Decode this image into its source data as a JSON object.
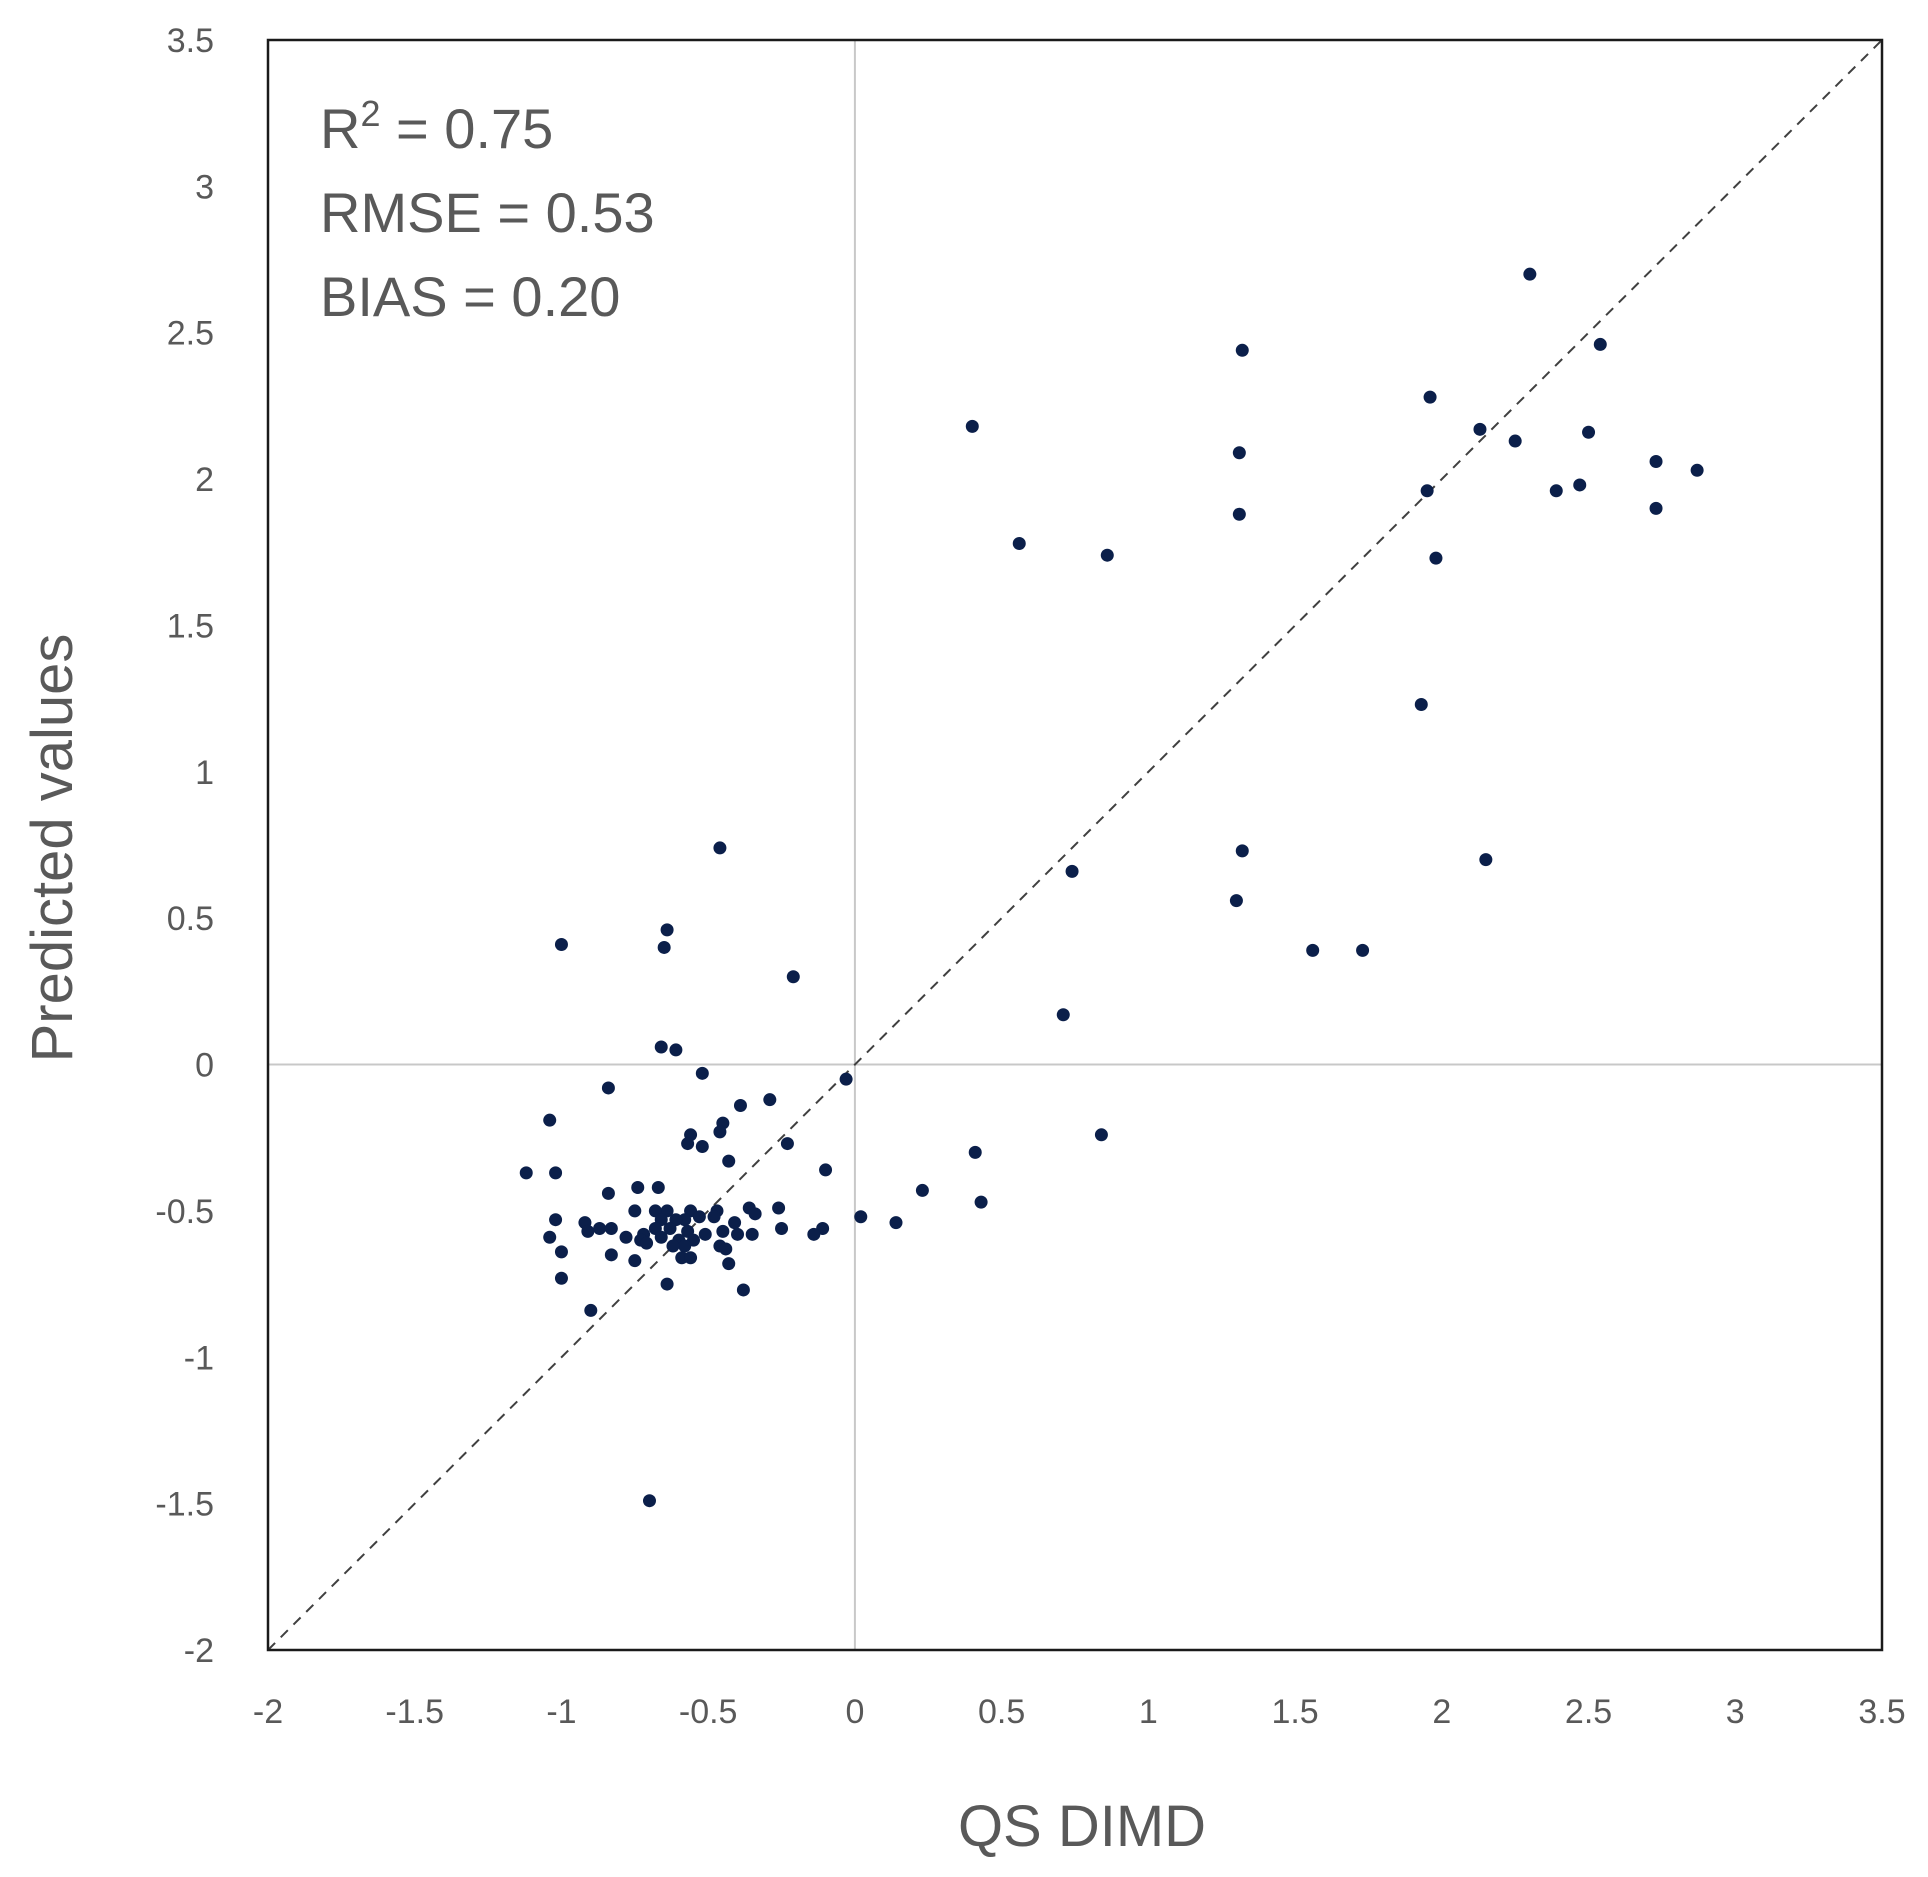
{
  "chart_data": {
    "type": "scatter",
    "title": "",
    "xlabel": "QS DIMD",
    "ylabel": "Predicted values",
    "xlim": [
      -2,
      3.5
    ],
    "ylim": [
      -2,
      3.5
    ],
    "x_ticks": [
      "-2",
      "-1.5",
      "-1",
      "-0.5",
      "0",
      "0.5",
      "1",
      "1.5",
      "2",
      "2.5",
      "3",
      "3.5"
    ],
    "y_ticks": [
      "-2",
      "-1.5",
      "-1",
      "-0.5",
      "0",
      "0.5",
      "1",
      "1.5",
      "2",
      "2.5",
      "3",
      "3.5"
    ],
    "grid": false,
    "zero_lines": true,
    "reference_line": {
      "type": "y=x",
      "style": "dashed"
    },
    "annotations": {
      "r2_label": "R",
      "r2_sup": "2",
      "r2_value": " = 0.75",
      "rmse": "RMSE = 0.53",
      "bias": "BIAS = 0.20"
    },
    "marker_color": "#0b1f4a",
    "series": [
      {
        "name": "points",
        "points": [
          [
            2.3,
            2.7
          ],
          [
            1.32,
            2.44
          ],
          [
            2.54,
            2.46
          ],
          [
            0.4,
            2.18
          ],
          [
            1.96,
            2.28
          ],
          [
            2.13,
            2.17
          ],
          [
            2.25,
            2.13
          ],
          [
            2.5,
            2.16
          ],
          [
            1.31,
            2.09
          ],
          [
            2.73,
            2.06
          ],
          [
            2.87,
            2.03
          ],
          [
            1.95,
            1.96
          ],
          [
            2.39,
            1.96
          ],
          [
            2.47,
            1.98
          ],
          [
            2.73,
            1.9
          ],
          [
            1.31,
            1.88
          ],
          [
            0.56,
            1.78
          ],
          [
            0.86,
            1.74
          ],
          [
            1.98,
            1.73
          ],
          [
            1.93,
            1.23
          ],
          [
            1.32,
            0.73
          ],
          [
            2.15,
            0.7
          ],
          [
            0.74,
            0.66
          ],
          [
            1.3,
            0.56
          ],
          [
            1.56,
            0.39
          ],
          [
            1.73,
            0.39
          ],
          [
            0.71,
            0.17
          ],
          [
            -0.46,
            0.74
          ],
          [
            -0.64,
            0.46
          ],
          [
            -0.65,
            0.4
          ],
          [
            -1.0,
            0.41
          ],
          [
            -0.21,
            0.3
          ],
          [
            -0.66,
            0.06
          ],
          [
            -0.61,
            0.05
          ],
          [
            -0.52,
            -0.03
          ],
          [
            -0.03,
            -0.05
          ],
          [
            -0.84,
            -0.08
          ],
          [
            -0.29,
            -0.12
          ],
          [
            -0.39,
            -0.14
          ],
          [
            -1.04,
            -0.19
          ],
          [
            -0.45,
            -0.2
          ],
          [
            -0.46,
            -0.23
          ],
          [
            -0.56,
            -0.24
          ],
          [
            -0.57,
            -0.27
          ],
          [
            -0.52,
            -0.28
          ],
          [
            -0.23,
            -0.27
          ],
          [
            0.84,
            -0.24
          ],
          [
            -0.43,
            -0.33
          ],
          [
            0.41,
            -0.3
          ],
          [
            -0.1,
            -0.36
          ],
          [
            -1.12,
            -0.37
          ],
          [
            -1.02,
            -0.37
          ],
          [
            -0.74,
            -0.42
          ],
          [
            -0.67,
            -0.42
          ],
          [
            -0.84,
            -0.44
          ],
          [
            0.23,
            -0.43
          ],
          [
            0.43,
            -0.47
          ],
          [
            -0.26,
            -0.49
          ],
          [
            -0.36,
            -0.49
          ],
          [
            -0.47,
            -0.5
          ],
          [
            -0.56,
            -0.5
          ],
          [
            -0.64,
            -0.5
          ],
          [
            -0.68,
            -0.5
          ],
          [
            -0.75,
            -0.5
          ],
          [
            -0.34,
            -0.51
          ],
          [
            -0.48,
            -0.52
          ],
          [
            -0.53,
            -0.52
          ],
          [
            -0.58,
            -0.53
          ],
          [
            -0.61,
            -0.53
          ],
          [
            -0.66,
            -0.53
          ],
          [
            -0.41,
            -0.54
          ],
          [
            -1.02,
            -0.53
          ],
          [
            -0.92,
            -0.54
          ],
          [
            0.02,
            -0.52
          ],
          [
            0.14,
            -0.54
          ],
          [
            -0.87,
            -0.56
          ],
          [
            -0.83,
            -0.56
          ],
          [
            -0.72,
            -0.58
          ],
          [
            -0.68,
            -0.56
          ],
          [
            -0.63,
            -0.56
          ],
          [
            -0.57,
            -0.57
          ],
          [
            -0.51,
            -0.58
          ],
          [
            -0.45,
            -0.57
          ],
          [
            -0.4,
            -0.58
          ],
          [
            -0.35,
            -0.58
          ],
          [
            -0.25,
            -0.56
          ],
          [
            -0.11,
            -0.56
          ],
          [
            -0.14,
            -0.58
          ],
          [
            -1.04,
            -0.59
          ],
          [
            -0.91,
            -0.57
          ],
          [
            -0.78,
            -0.59
          ],
          [
            -0.73,
            -0.6
          ],
          [
            -0.66,
            -0.59
          ],
          [
            -0.6,
            -0.6
          ],
          [
            -0.55,
            -0.6
          ],
          [
            -0.46,
            -0.62
          ],
          [
            -0.44,
            -0.63
          ],
          [
            -0.58,
            -0.62
          ],
          [
            -0.62,
            -0.62
          ],
          [
            -0.71,
            -0.61
          ],
          [
            -1.0,
            -0.64
          ],
          [
            -0.83,
            -0.65
          ],
          [
            -0.59,
            -0.66
          ],
          [
            -0.56,
            -0.66
          ],
          [
            -0.75,
            -0.67
          ],
          [
            -0.43,
            -0.68
          ],
          [
            -1.0,
            -0.73
          ],
          [
            -0.64,
            -0.75
          ],
          [
            -0.38,
            -0.77
          ],
          [
            -0.9,
            -0.84
          ],
          [
            -0.7,
            -1.49
          ]
        ]
      }
    ]
  }
}
